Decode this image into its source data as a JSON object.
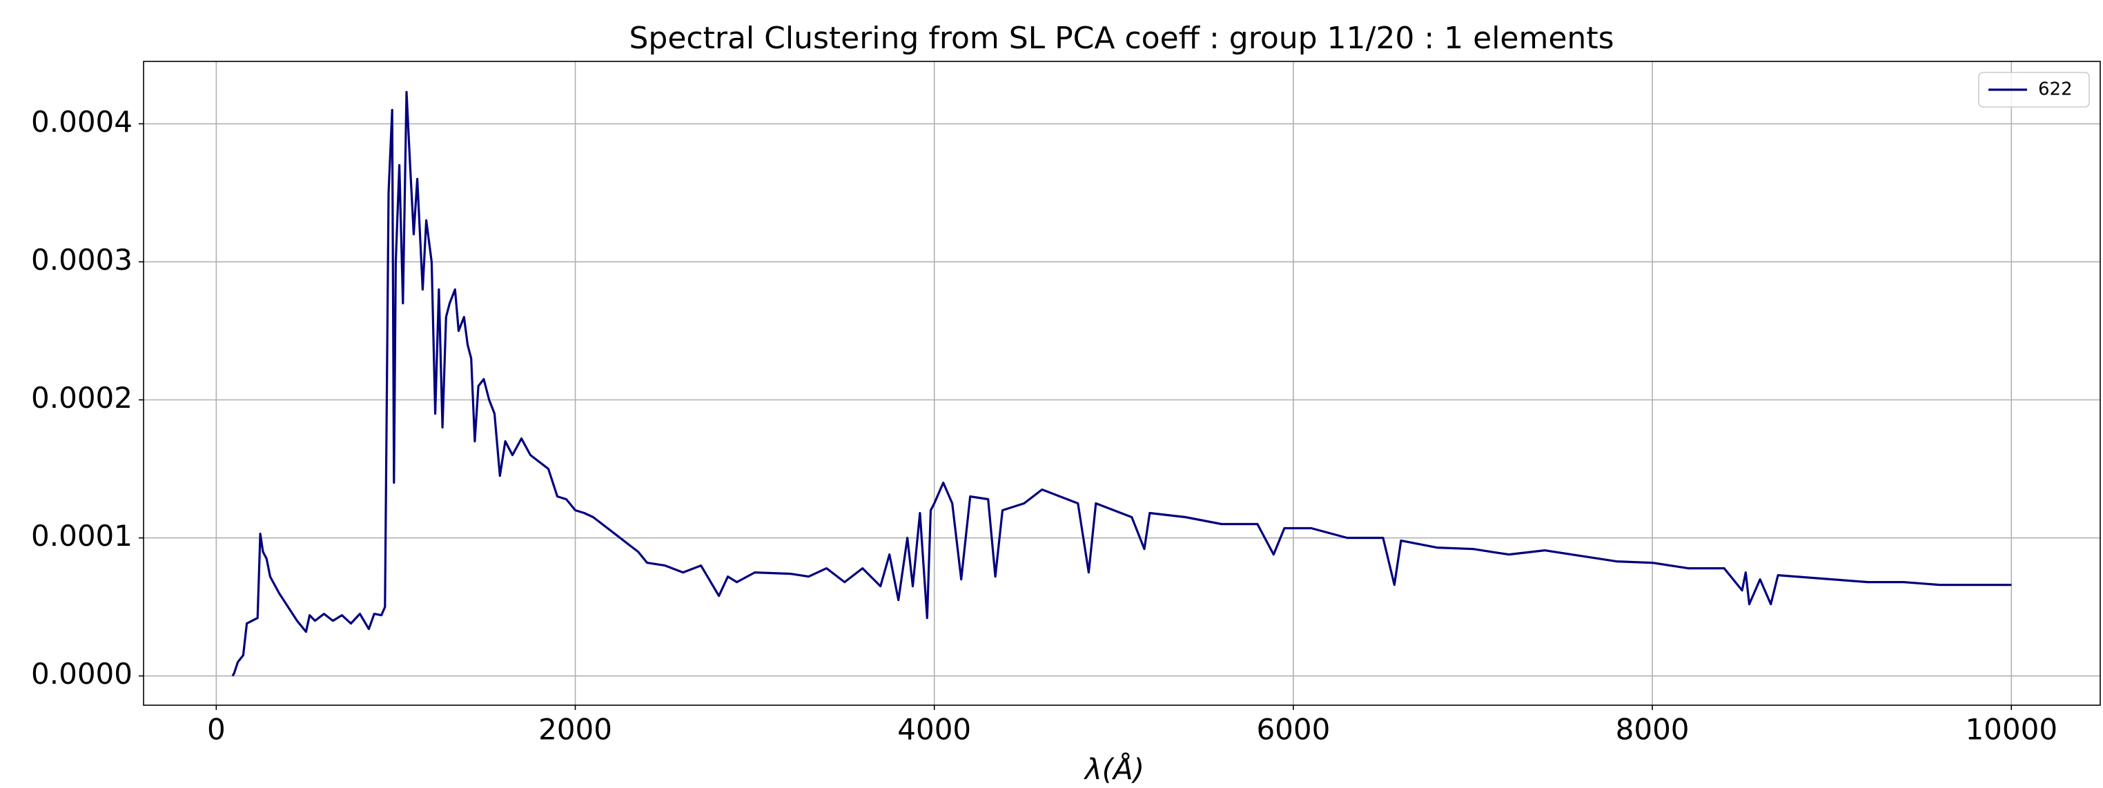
{
  "chart_data": {
    "type": "line",
    "title": "Spectral Clustering from SL PCA coeff : group 11/20 : 1 elements",
    "xlabel": "λ(Å)",
    "x": [
      91,
      100,
      120,
      150,
      170,
      200,
      230,
      245,
      260,
      280,
      300,
      350,
      400,
      450,
      500,
      520,
      550,
      600,
      650,
      700,
      750,
      800,
      850,
      880,
      920,
      940,
      960,
      980,
      990,
      1000,
      1020,
      1040,
      1060,
      1080,
      1100,
      1120,
      1150,
      1170,
      1200,
      1220,
      1240,
      1260,
      1280,
      1300,
      1330,
      1350,
      1380,
      1400,
      1420,
      1440,
      1460,
      1490,
      1520,
      1550,
      1580,
      1610,
      1650,
      1700,
      1750,
      1800,
      1850,
      1900,
      1950,
      2000,
      2050,
      2100,
      2200,
      2300,
      2350,
      2400,
      2500,
      2600,
      2700,
      2800,
      2850,
      2900,
      3000,
      3200,
      3300,
      3400,
      3500,
      3600,
      3700,
      3750,
      3800,
      3850,
      3880,
      3920,
      3960,
      3980,
      4000,
      4050,
      4100,
      4150,
      4200,
      4300,
      4340,
      4380,
      4500,
      4600,
      4700,
      4800,
      4860,
      4900,
      5000,
      5100,
      5170,
      5200,
      5400,
      5600,
      5800,
      5890,
      5950,
      6100,
      6300,
      6500,
      6563,
      6600,
      6800,
      7000,
      7200,
      7400,
      7600,
      7800,
      8000,
      8200,
      8400,
      8500,
      8520,
      8540,
      8600,
      8660,
      8700,
      9000,
      9200,
      9400,
      9600,
      9800,
      10000
    ],
    "series": [
      {
        "name": "622",
        "color": "#000080",
        "values": [
          0,
          2e-06,
          1e-05,
          1.5e-05,
          3.8e-05,
          4e-05,
          4.2e-05,
          0.000103,
          9e-05,
          8.5e-05,
          7.2e-05,
          6e-05,
          5e-05,
          4e-05,
          3.2e-05,
          4.4e-05,
          4e-05,
          4.5e-05,
          4e-05,
          4.4e-05,
          3.8e-05,
          4.5e-05,
          3.4e-05,
          4.5e-05,
          4.4e-05,
          5e-05,
          0.00035,
          0.00041,
          0.00014,
          0.0003,
          0.00037,
          0.00027,
          0.000423,
          0.00037,
          0.00032,
          0.00036,
          0.00028,
          0.00033,
          0.0003,
          0.00019,
          0.00028,
          0.00018,
          0.00026,
          0.00027,
          0.00028,
          0.00025,
          0.00026,
          0.00024,
          0.00023,
          0.00017,
          0.00021,
          0.000215,
          0.0002,
          0.00019,
          0.000145,
          0.00017,
          0.00016,
          0.000172,
          0.00016,
          0.000155,
          0.00015,
          0.00013,
          0.000128,
          0.00012,
          0.000118,
          0.000115,
          0.000105,
          9.5e-05,
          9e-05,
          8.2e-05,
          8e-05,
          7.5e-05,
          8e-05,
          5.8e-05,
          7.2e-05,
          6.8e-05,
          7.5e-05,
          7.4e-05,
          7.2e-05,
          7.8e-05,
          6.8e-05,
          7.8e-05,
          6.5e-05,
          8.8e-05,
          5.5e-05,
          0.0001,
          6.5e-05,
          0.000118,
          4.2e-05,
          0.00012,
          0.000125,
          0.00014,
          0.000125,
          7e-05,
          0.00013,
          0.000128,
          7.2e-05,
          0.00012,
          0.000125,
          0.000135,
          0.00013,
          0.000125,
          7.5e-05,
          0.000125,
          0.00012,
          0.000115,
          9.2e-05,
          0.000118,
          0.000115,
          0.00011,
          0.00011,
          8.8e-05,
          0.000107,
          0.000107,
          0.0001,
          0.0001,
          6.6e-05,
          9.8e-05,
          9.3e-05,
          9.2e-05,
          8.8e-05,
          9.1e-05,
          8.7e-05,
          8.3e-05,
          8.2e-05,
          7.8e-05,
          7.8e-05,
          6.2e-05,
          7.5e-05,
          5.2e-05,
          7e-05,
          5.2e-05,
          7.3e-05,
          7e-05,
          6.8e-05,
          6.8e-05,
          6.6e-05,
          6.6e-05,
          6.6e-05
        ]
      }
    ],
    "xlim": [
      -405,
      10495
    ],
    "xticks": [
      0,
      2000,
      4000,
      6000,
      8000,
      10000
    ],
    "ylim": [
      -2.12e-05,
      0.0004452
    ],
    "yticks": [
      {
        "value": 0,
        "label": "0.0000"
      },
      {
        "value": 0.0001,
        "label": "0.0001"
      },
      {
        "value": 0.0002,
        "label": "0.0002"
      },
      {
        "value": 0.0003,
        "label": "0.0003"
      },
      {
        "value": 0.0004,
        "label": "0.0004"
      }
    ],
    "grid": true,
    "legend": "upper right"
  }
}
